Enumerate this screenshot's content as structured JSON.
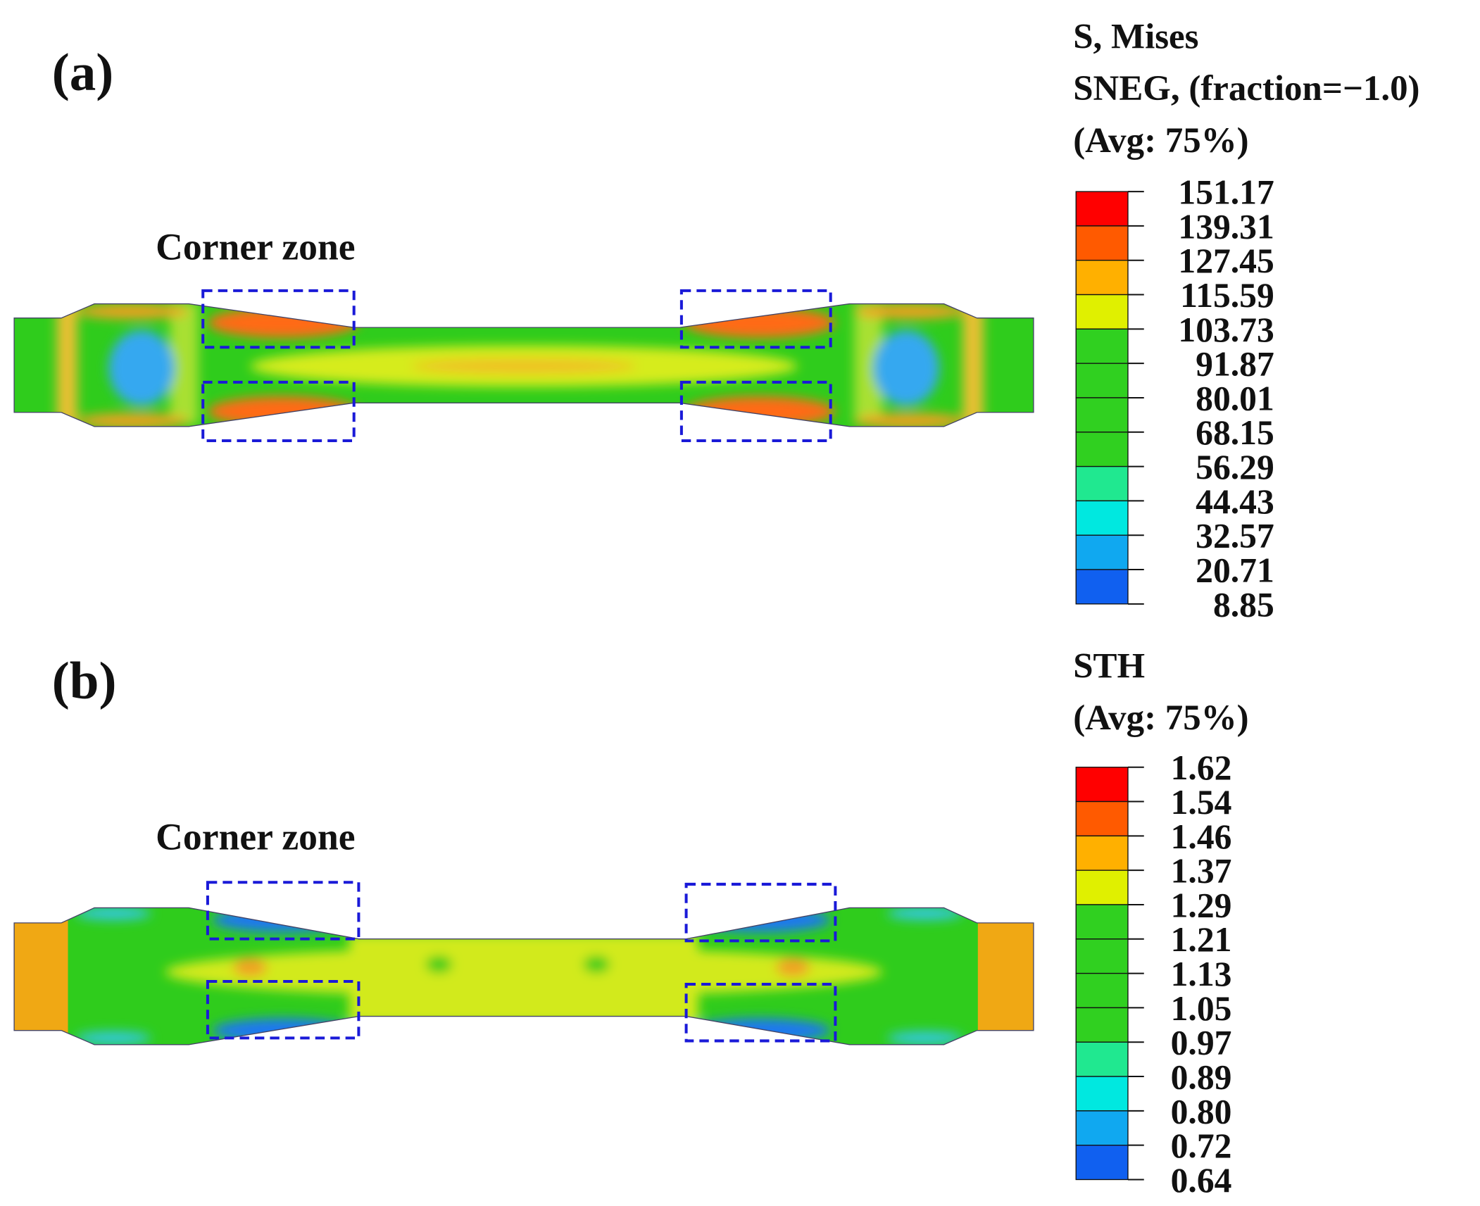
{
  "panels": [
    {
      "label": "(a)",
      "annotation": "Corner zone",
      "legend": {
        "title": [
          "S, Mises",
          "SNEG, (fraction=−1.0)",
          "(Avg: 75%)"
        ],
        "ticks": [
          "151.17",
          "139.31",
          "127.45",
          "115.59",
          "103.73",
          "91.87",
          "80.01",
          "68.15",
          "56.29",
          "44.43",
          "32.57",
          "20.71",
          "8.85"
        ]
      }
    },
    {
      "label": "(b)",
      "annotation": "Corner zone",
      "legend": {
        "title": [
          "STH",
          "(Avg: 75%)"
        ],
        "ticks": [
          "1.62",
          "1.54",
          "1.46",
          "1.37",
          "1.29",
          "1.21",
          "1.13",
          "1.05",
          "0.97",
          "0.89",
          "0.80",
          "0.72",
          "0.64"
        ]
      }
    }
  ]
}
